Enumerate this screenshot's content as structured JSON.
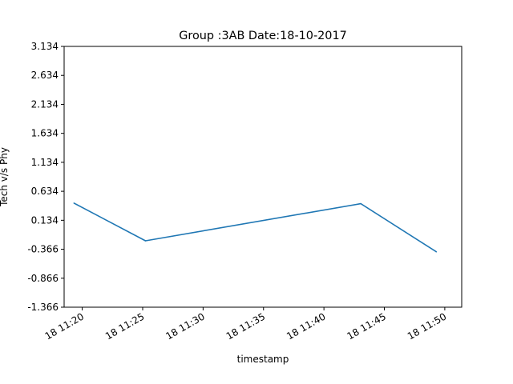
{
  "chart_data": {
    "type": "line",
    "title": "Group :3AB Date:18-10-2017",
    "xlabel": "timestamp",
    "ylabel": "Tech v/s Phy",
    "x": [
      "18 11:19:19",
      "18 11:25:14",
      "18 11:43:03",
      "18 11:49:18"
    ],
    "series": [
      {
        "values": [
          0.43,
          -0.22,
          0.42,
          -0.41
        ],
        "color": "#1f77b4"
      }
    ],
    "ylim": [
      -1.366,
      3.134
    ],
    "yticks": [
      "3.134",
      "2.634",
      "2.134",
      "1.634",
      "1.134",
      "0.634",
      "0.134",
      "-0.366",
      "-0.866",
      "-1.366"
    ],
    "xticks": [
      "18 11:20",
      "18 11:25",
      "18 11:30",
      "18 11:35",
      "18 11:40",
      "18 11:45",
      "18 11:50"
    ],
    "grid": false,
    "legend": "none"
  }
}
